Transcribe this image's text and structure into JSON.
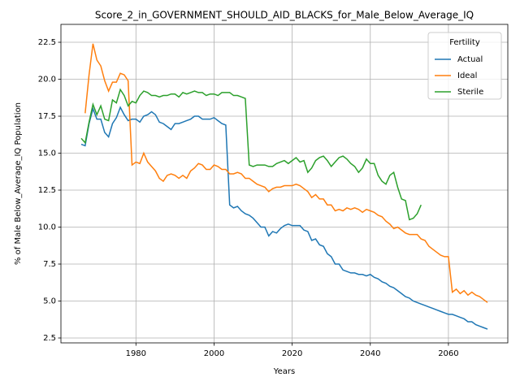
{
  "chart_data": {
    "type": "line",
    "title": "Score_2_in_GOVERNMENT_SHOULD_AID_BLACKS_for_Male_Below_Average_IQ",
    "xlabel": "Years",
    "ylabel": "% of Male Below_Average_IQ Population",
    "legend_title": "Fertility",
    "legend_loc": "upper right",
    "grid": true,
    "x": [
      1966,
      1967,
      1968,
      1969,
      1970,
      1971,
      1972,
      1973,
      1974,
      1975,
      1976,
      1977,
      1978,
      1979,
      1980,
      1981,
      1982,
      1983,
      1984,
      1985,
      1986,
      1987,
      1988,
      1989,
      1990,
      1991,
      1992,
      1993,
      1994,
      1995,
      1996,
      1997,
      1998,
      1999,
      2000,
      2001,
      2002,
      2003,
      2004,
      2005,
      2006,
      2007,
      2008,
      2009,
      2010,
      2011,
      2012,
      2013,
      2014,
      2015,
      2016,
      2017,
      2018,
      2019,
      2020,
      2021,
      2022,
      2023,
      2024,
      2025,
      2026,
      2027,
      2028,
      2029,
      2030,
      2031,
      2032,
      2033,
      2034,
      2035,
      2036,
      2037,
      2038,
      2039,
      2040,
      2041,
      2042,
      2043,
      2044,
      2045,
      2046,
      2047,
      2048,
      2049,
      2050,
      2051,
      2052,
      2053,
      2054,
      2055,
      2056,
      2057,
      2058,
      2059,
      2060,
      2061,
      2062,
      2063,
      2064,
      2065,
      2066,
      2067,
      2068,
      2069,
      2070
    ],
    "series": [
      {
        "name": "Actual",
        "color": "#1f77b4",
        "values": [
          15.6,
          15.5,
          17.0,
          18.0,
          17.3,
          17.3,
          16.4,
          16.1,
          17.0,
          17.4,
          18.1,
          17.6,
          17.2,
          17.3,
          17.3,
          17.1,
          17.5,
          17.6,
          17.8,
          17.6,
          17.1,
          17.0,
          16.8,
          16.6,
          17.0,
          17.0,
          17.1,
          17.2,
          17.3,
          17.5,
          17.5,
          17.3,
          17.3,
          17.3,
          17.4,
          17.2,
          17.0,
          16.9,
          11.5,
          11.3,
          11.4,
          11.1,
          10.9,
          10.8,
          10.6,
          10.3,
          10.0,
          10.0,
          9.4,
          9.7,
          9.6,
          9.9,
          10.1,
          10.2,
          10.1,
          10.1,
          10.1,
          9.8,
          9.7,
          9.1,
          9.2,
          8.8,
          8.7,
          8.2,
          8.0,
          7.5,
          7.5,
          7.1,
          7.0,
          6.9,
          6.9,
          6.8,
          6.8,
          6.7,
          6.8,
          6.6,
          6.5,
          6.3,
          6.2,
          6.0,
          5.9,
          5.7,
          5.5,
          5.3,
          5.2,
          5.0,
          4.9,
          4.8,
          4.7,
          4.6,
          4.5,
          4.4,
          4.3,
          4.2,
          4.1,
          4.1,
          4.0,
          3.9,
          3.8,
          3.6,
          3.6,
          3.4,
          3.3,
          3.2,
          3.1
        ]
      },
      {
        "name": "Ideal",
        "color": "#ff7f0e",
        "values": [
          null,
          17.7,
          20.3,
          22.4,
          21.3,
          20.9,
          19.9,
          19.2,
          19.8,
          19.8,
          20.4,
          20.3,
          19.9,
          14.2,
          14.4,
          14.3,
          15.0,
          14.4,
          14.1,
          13.8,
          13.3,
          13.1,
          13.5,
          13.6,
          13.5,
          13.3,
          13.5,
          13.3,
          13.8,
          14.0,
          14.3,
          14.2,
          13.9,
          13.9,
          14.2,
          14.1,
          13.9,
          13.9,
          13.6,
          13.6,
          13.7,
          13.6,
          13.3,
          13.3,
          13.1,
          12.9,
          12.8,
          12.7,
          12.4,
          12.6,
          12.7,
          12.7,
          12.8,
          12.8,
          12.8,
          12.9,
          12.8,
          12.6,
          12.4,
          12.0,
          12.2,
          11.9,
          11.9,
          11.5,
          11.5,
          11.1,
          11.2,
          11.1,
          11.3,
          11.2,
          11.3,
          11.2,
          11.0,
          11.2,
          11.1,
          11.0,
          10.8,
          10.7,
          10.4,
          10.2,
          9.9,
          10.0,
          9.8,
          9.6,
          9.5,
          9.5,
          9.5,
          9.2,
          9.1,
          8.7,
          8.5,
          8.3,
          8.1,
          8.0,
          8.0,
          5.6,
          5.8,
          5.5,
          5.7,
          5.4,
          5.6,
          5.4,
          5.3,
          5.1,
          4.9
        ]
      },
      {
        "name": "Sterile",
        "color": "#2ca02c",
        "values": [
          16.0,
          15.7,
          17.1,
          18.3,
          17.6,
          18.2,
          17.3,
          17.2,
          18.6,
          18.4,
          19.3,
          18.9,
          18.2,
          18.5,
          18.4,
          18.9,
          19.2,
          19.1,
          18.9,
          18.9,
          18.8,
          18.9,
          18.9,
          19.0,
          19.0,
          18.8,
          19.1,
          19.0,
          19.1,
          19.2,
          19.1,
          19.1,
          18.9,
          19.0,
          19.0,
          18.9,
          19.1,
          19.1,
          19.1,
          18.9,
          18.9,
          18.8,
          18.7,
          14.2,
          14.1,
          14.2,
          14.2,
          14.2,
          14.1,
          14.1,
          14.3,
          14.4,
          14.5,
          14.3,
          14.5,
          14.7,
          14.4,
          14.5,
          13.7,
          14.0,
          14.5,
          14.7,
          14.8,
          14.5,
          14.1,
          14.4,
          14.7,
          14.8,
          14.6,
          14.3,
          14.1,
          13.7,
          14.0,
          14.6,
          14.3,
          14.3,
          13.5,
          13.1,
          12.9,
          13.5,
          13.7,
          12.7,
          11.9,
          11.8,
          10.5,
          10.6,
          10.9,
          11.5,
          null,
          null,
          null,
          null,
          null,
          null,
          null,
          null,
          null,
          null,
          null,
          null,
          null,
          null,
          null,
          null,
          null
        ]
      }
    ],
    "xlim": [
      1960.8,
      2075.2
    ],
    "xticks": [
      1980,
      2000,
      2020,
      2040,
      2060
    ],
    "ylim": [
      2.17,
      23.71
    ],
    "yticks": [
      2.5,
      {
        "value": 5,
        "label": "5.0"
      },
      7.5,
      {
        "value": 10,
        "label": "10.0"
      },
      12.5,
      {
        "value": 15,
        "label": "15.0"
      },
      17.5,
      {
        "value": 20,
        "label": "20.0"
      },
      22.5
    ]
  }
}
